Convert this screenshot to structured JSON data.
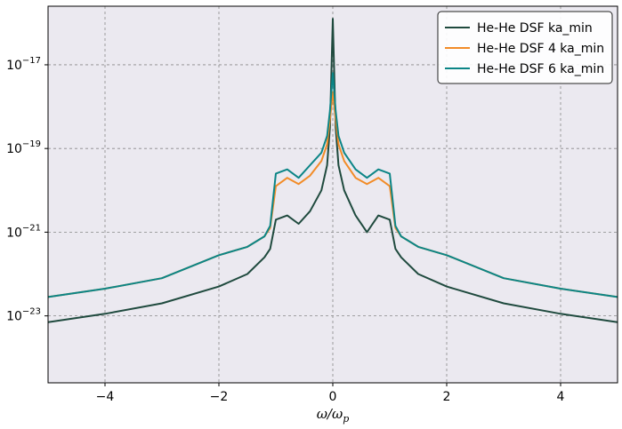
{
  "chart_data": {
    "type": "line",
    "title": "",
    "xlabel": "ω/ω",
    "xlabel_sub": "p",
    "ylabel": "",
    "xlim": [
      -5,
      5
    ],
    "ylim_log10": [
      -24.6,
      -15.6
    ],
    "yscale": "log",
    "grid": true,
    "legend_position": "top-right",
    "background": "#ebe9f0",
    "x_ticks": [
      {
        "value": -4,
        "label": "−4"
      },
      {
        "value": -2,
        "label": "−2"
      },
      {
        "value": 0,
        "label": "0"
      },
      {
        "value": 2,
        "label": "2"
      },
      {
        "value": 4,
        "label": "4"
      }
    ],
    "y_ticks": [
      {
        "exp": -17,
        "label": "10",
        "sup": "−17"
      },
      {
        "exp": -19,
        "label": "10",
        "sup": "−19"
      },
      {
        "exp": -21,
        "label": "10",
        "sup": "−21"
      },
      {
        "exp": -23,
        "label": "10",
        "sup": "−23"
      }
    ],
    "x": [
      -5,
      -4,
      -3,
      -2,
      -1.5,
      -1.2,
      -1.1,
      -1.0,
      -0.8,
      -0.6,
      -0.4,
      -0.2,
      -0.1,
      -0.05,
      0,
      0.05,
      0.1,
      0.2,
      0.4,
      0.6,
      0.8,
      1.0,
      1.1,
      1.2,
      1.5,
      2,
      3,
      4,
      5
    ],
    "series": [
      {
        "name": "He-He DSF ka_min",
        "color": "#1f4a3e",
        "log10_values": [
          -23.15,
          -22.95,
          -22.7,
          -22.3,
          -22.0,
          -21.6,
          -21.4,
          -20.7,
          -20.6,
          -20.8,
          -20.5,
          -20.0,
          -19.4,
          -18.5,
          -15.9,
          -18.5,
          -19.4,
          -20.0,
          -20.6,
          -21.0,
          -20.6,
          -20.7,
          -21.4,
          -21.6,
          -22.0,
          -22.3,
          -22.7,
          -22.95,
          -23.15
        ]
      },
      {
        "name": "He-He DSF 4 ka_min",
        "color": "#f28c28",
        "log10_values": [
          -22.55,
          -22.35,
          -22.1,
          -21.55,
          -21.35,
          -21.1,
          -20.9,
          -19.9,
          -19.7,
          -19.85,
          -19.65,
          -19.3,
          -18.9,
          -18.3,
          -17.65,
          -18.3,
          -18.9,
          -19.3,
          -19.7,
          -19.85,
          -19.7,
          -19.9,
          -20.9,
          -21.1,
          -21.35,
          -21.55,
          -22.1,
          -22.35,
          -22.55
        ]
      },
      {
        "name": "He-He DSF 6 ka_min",
        "color": "#0b8586",
        "log10_values": [
          -22.55,
          -22.35,
          -22.1,
          -21.55,
          -21.35,
          -21.1,
          -20.85,
          -19.6,
          -19.5,
          -19.7,
          -19.4,
          -19.1,
          -18.7,
          -18.1,
          -17.2,
          -18.1,
          -18.7,
          -19.1,
          -19.5,
          -19.7,
          -19.5,
          -19.6,
          -20.85,
          -21.1,
          -21.35,
          -21.55,
          -22.1,
          -22.35,
          -22.55
        ]
      }
    ]
  }
}
